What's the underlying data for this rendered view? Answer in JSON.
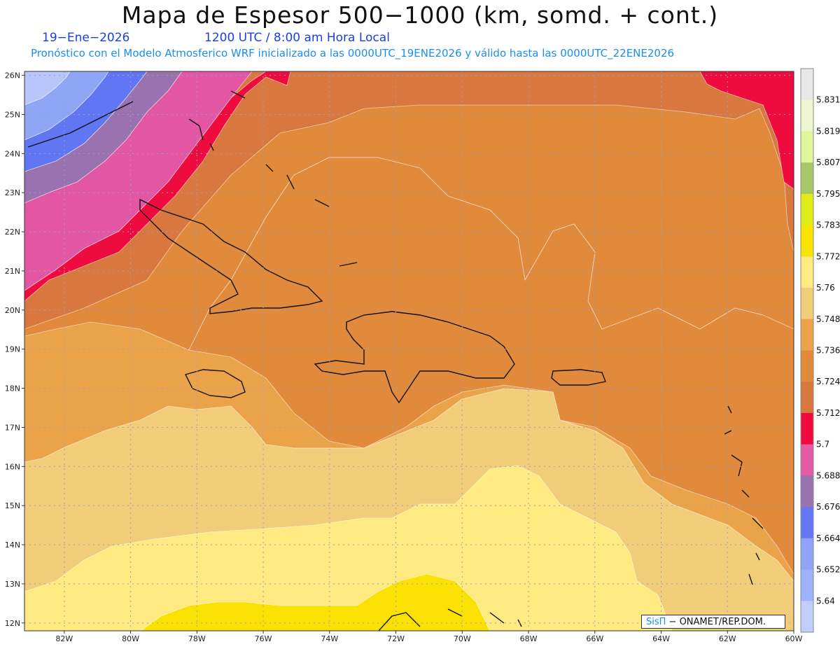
{
  "header": {
    "title": "Mapa de Espesor 500−1000 (km, somd. + cont.)",
    "date": "19−Ene−2026",
    "time": "1200 UTC / 8:00 am Hora Local",
    "forecast": "Pronóstico con el Modelo Atmosferico WRF inicializado a las 0000UTC_19ENE2026 y válido hasta las  0000UTC_22ENE2026"
  },
  "map": {
    "lat_labels": [
      "26N",
      "25N",
      "24N",
      "23N",
      "22N",
      "21N",
      "20N",
      "19N",
      "18N",
      "17N",
      "16N",
      "15N",
      "14N",
      "13N",
      "12N"
    ],
    "lon_labels": [
      "82W",
      "80W",
      "78W",
      "76W",
      "74W",
      "72W",
      "70W",
      "68W",
      "66W",
      "64W",
      "62W",
      "60W"
    ],
    "credit_logo": "SisΠ",
    "credit_text": " − ONAMET/REP.DOM.",
    "colors": {
      "v5640": "#b9c6fb",
      "v5652": "#8fa6f7",
      "v5664": "#6176f3",
      "v5676": "#9b72b0",
      "v5688": "#e256a4",
      "v5700": "#ee0c3f",
      "v5712": "#d8773e",
      "v5724": "#e18a3c",
      "v5736": "#eba34a",
      "v5748": "#f2cd79",
      "v5760": "#feea81",
      "v5772": "#fbe102"
    }
  },
  "colorbar": {
    "labels": [
      "5.64",
      "5.652",
      "5.664",
      "5.676",
      "5.688",
      "5.7",
      "5.712",
      "5.724",
      "5.736",
      "5.748",
      "5.76",
      "5.772",
      "5.783",
      "5.795",
      "5.807",
      "5.819",
      "5.831"
    ],
    "colors": [
      "#c1cdfd",
      "#9cb2fb",
      "#8fa4f8",
      "#6478f6",
      "#9b72b0",
      "#e35ba6",
      "#ee0c3f",
      "#d8773e",
      "#e18a3c",
      "#eba34a",
      "#f2cd79",
      "#feea81",
      "#fbe300",
      "#e1eb1a",
      "#a8c766",
      "#def59a",
      "#eef6cf",
      "#e8e8e8"
    ]
  }
}
